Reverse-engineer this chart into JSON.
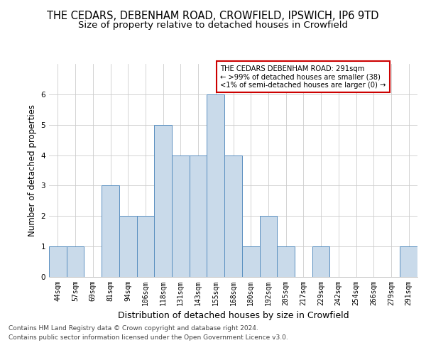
{
  "title1": "THE CEDARS, DEBENHAM ROAD, CROWFIELD, IPSWICH, IP6 9TD",
  "title2": "Size of property relative to detached houses in Crowfield",
  "xlabel": "Distribution of detached houses by size in Crowfield",
  "ylabel": "Number of detached properties",
  "categories": [
    "44sqm",
    "57sqm",
    "69sqm",
    "81sqm",
    "94sqm",
    "106sqm",
    "118sqm",
    "131sqm",
    "143sqm",
    "155sqm",
    "168sqm",
    "180sqm",
    "192sqm",
    "205sqm",
    "217sqm",
    "229sqm",
    "242sqm",
    "254sqm",
    "266sqm",
    "279sqm",
    "291sqm"
  ],
  "values": [
    1,
    1,
    0,
    3,
    2,
    2,
    5,
    4,
    4,
    6,
    4,
    1,
    2,
    1,
    0,
    1,
    0,
    0,
    0,
    0,
    1
  ],
  "bar_color": "#c9daea",
  "bar_edge_color": "#5a8fc0",
  "ylim": [
    0,
    7
  ],
  "yticks": [
    0,
    1,
    2,
    3,
    4,
    5,
    6,
    7
  ],
  "legend_title": "THE CEDARS DEBENHAM ROAD: 291sqm",
  "legend_line1": "← >99% of detached houses are smaller (38)",
  "legend_line2": "<1% of semi-detached houses are larger (0) →",
  "legend_box_facecolor": "#ffffff",
  "legend_box_edgecolor": "#cc0000",
  "footer1": "Contains HM Land Registry data © Crown copyright and database right 2024.",
  "footer2": "Contains public sector information licensed under the Open Government Licence v3.0.",
  "bg_color": "#ffffff",
  "grid_color": "#cccccc",
  "title_fontsize": 10.5,
  "subtitle_fontsize": 9.5,
  "tick_fontsize": 7,
  "ylabel_fontsize": 8.5,
  "xlabel_fontsize": 9,
  "footer_fontsize": 6.5
}
